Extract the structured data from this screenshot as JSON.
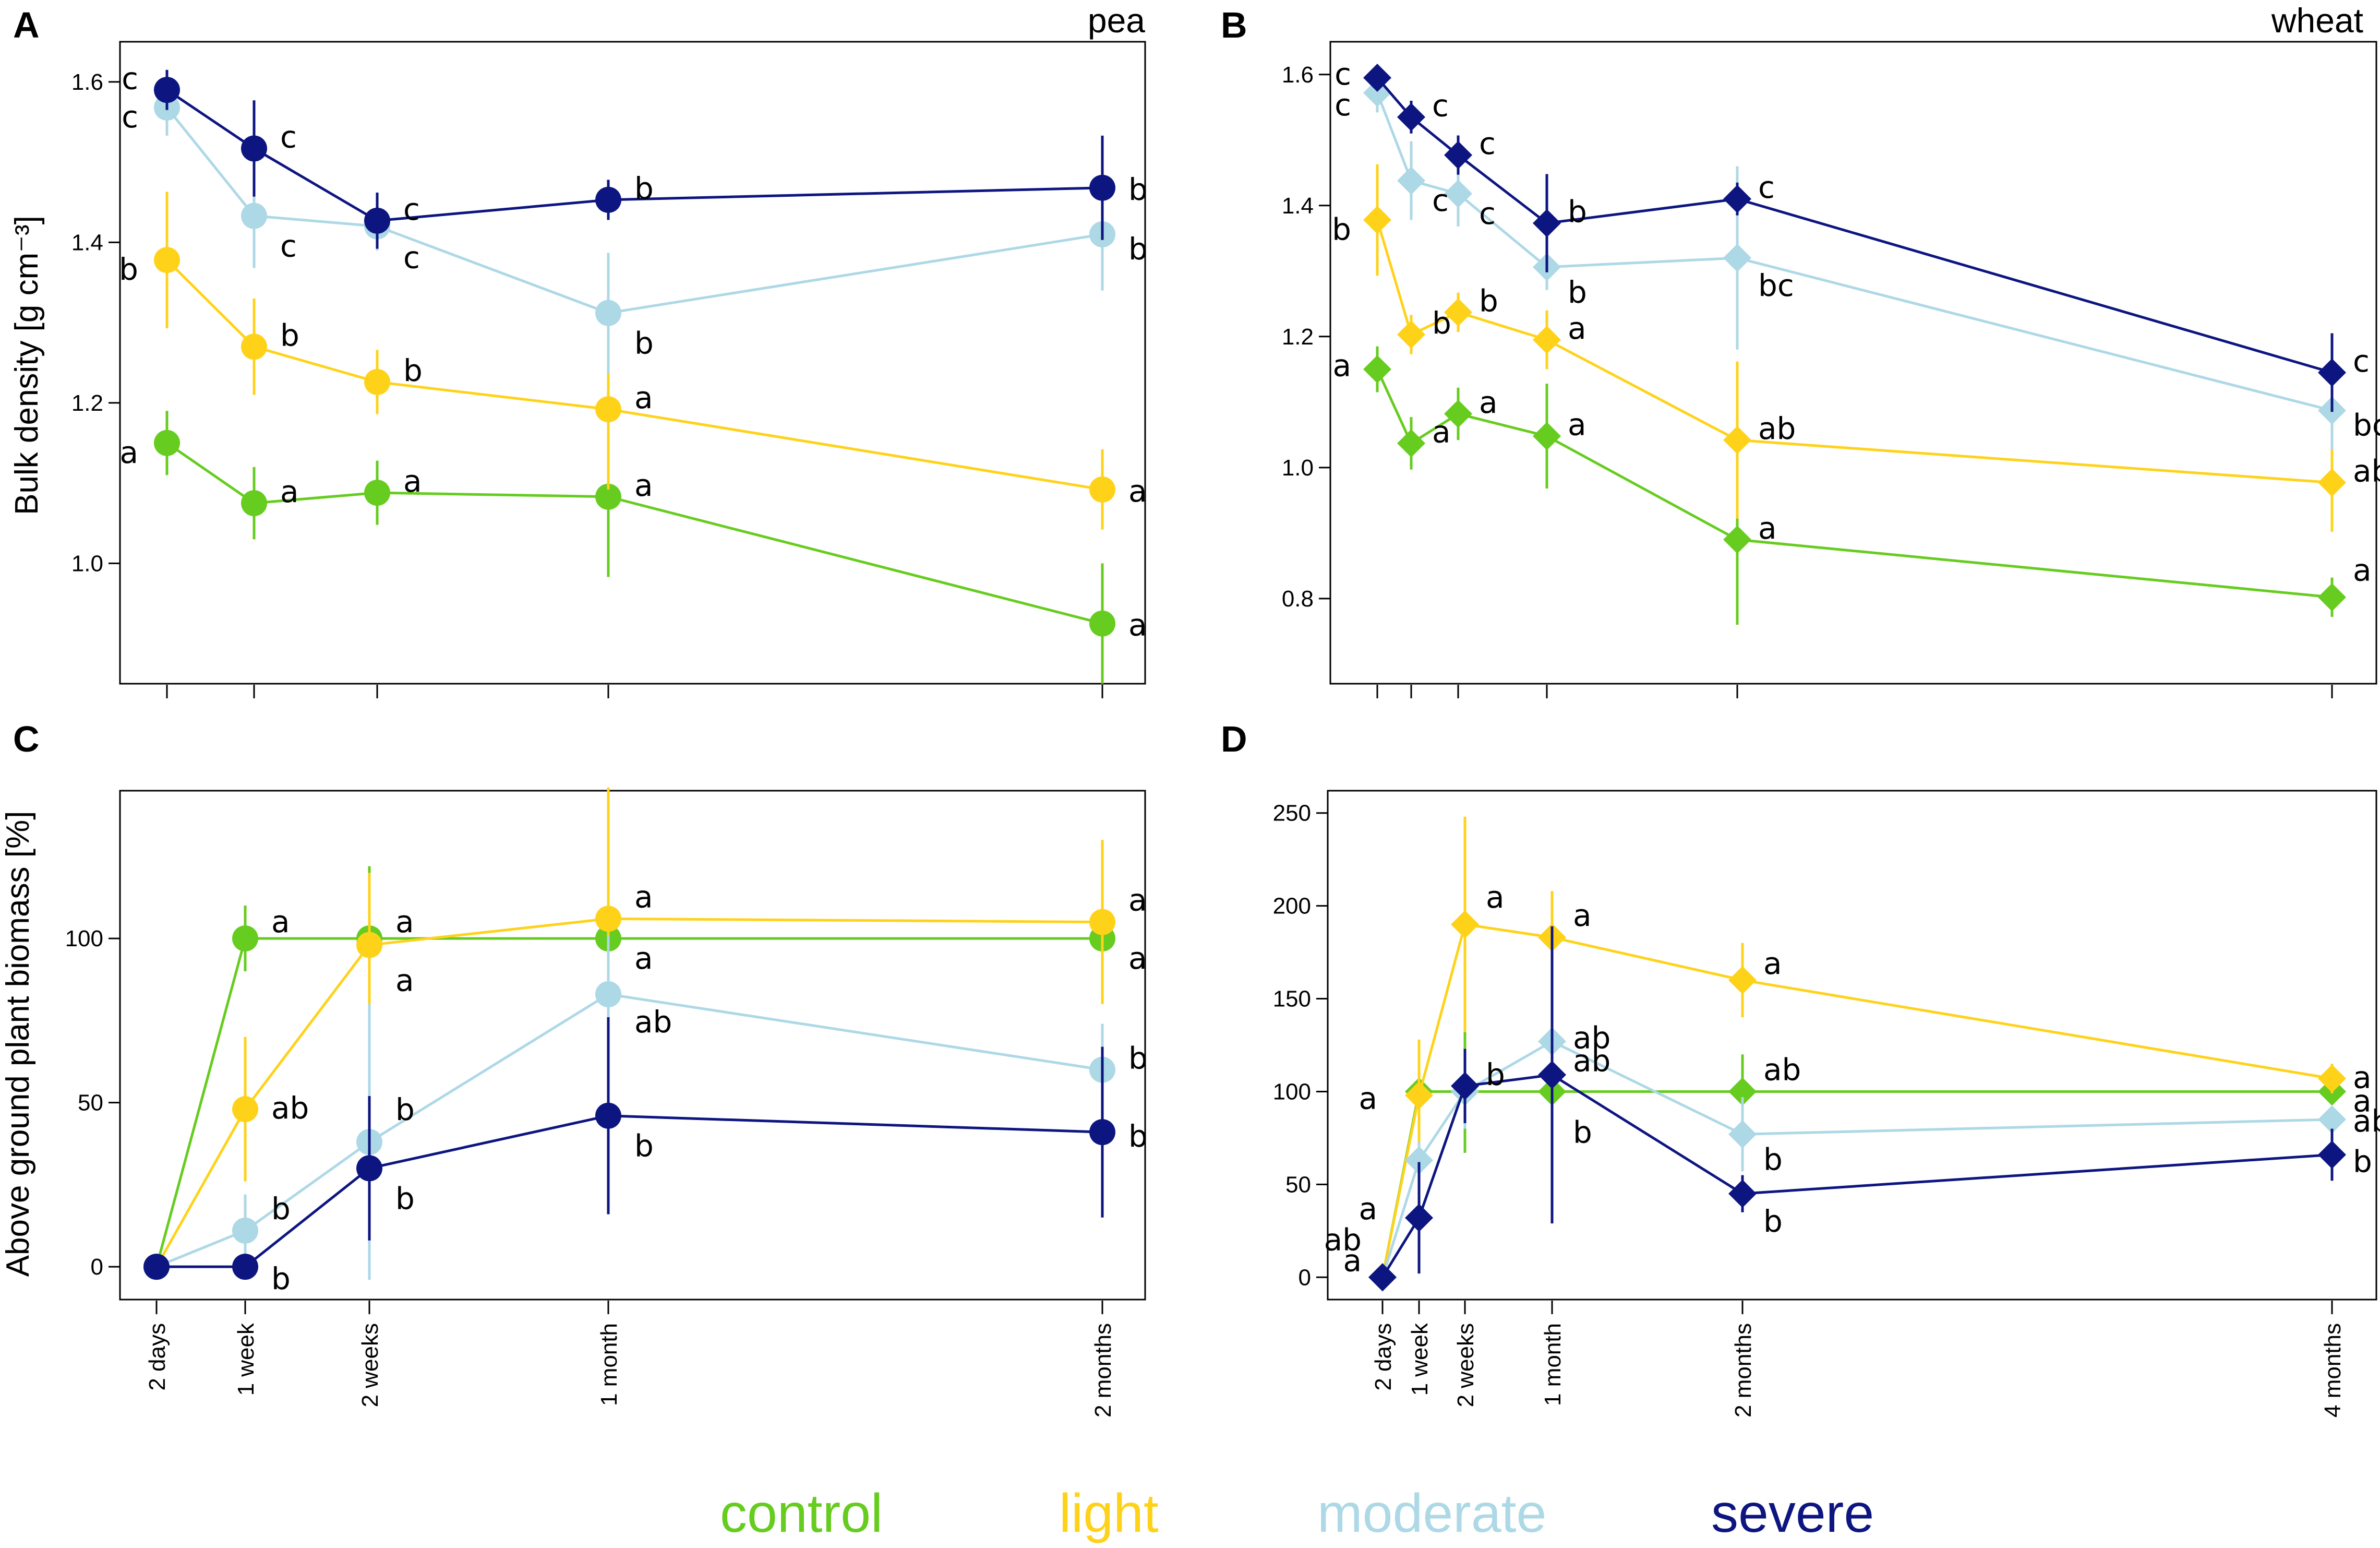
{
  "colors": {
    "control": "#66cc1f",
    "light": "#ffd21a",
    "moderate": "#add8e6",
    "severe": "#0d1580"
  },
  "legend": [
    {
      "key": "control",
      "label": "control"
    },
    {
      "key": "light",
      "label": "light"
    },
    {
      "key": "moderate",
      "label": "moderate"
    },
    {
      "key": "severe",
      "label": "severe"
    }
  ],
  "ylabel_top": "Bulk density [g cm⁻³]",
  "ylabel_bottom": "Above ground plant biomass [%]",
  "chart_data": [
    {
      "panel": "A",
      "crop": "pea",
      "type": "line",
      "marker": "circle",
      "ylabel": "Bulk density [g cm⁻³]",
      "ylim": [
        0.85,
        1.65
      ],
      "yticks": [
        1.0,
        1.2,
        1.4,
        1.6
      ],
      "x": [
        0,
        1,
        2,
        3,
        4
      ],
      "xticks": [
        "2 days",
        "1 week",
        "2 weeks",
        "1 month",
        "2 months"
      ],
      "show_xtick_labels": false,
      "series": [
        {
          "name": "control",
          "values": [
            1.15,
            1.075,
            1.088,
            1.083,
            0.925
          ],
          "err": [
            0.04,
            0.045,
            0.04,
            0.1,
            0.075
          ],
          "labels": [
            "a",
            "a",
            "a",
            "a",
            "a"
          ]
        },
        {
          "name": "light",
          "values": [
            1.378,
            1.27,
            1.226,
            1.192,
            1.092
          ],
          "err": [
            0.085,
            0.06,
            0.04,
            0.1,
            0.05
          ],
          "labels": [
            "b",
            "b",
            "b",
            "a",
            "a"
          ]
        },
        {
          "name": "moderate",
          "values": [
            1.568,
            1.433,
            1.42,
            1.312,
            1.41
          ],
          "err": [
            0.035,
            0.065,
            0.03,
            0.075,
            0.07
          ],
          "labels": [
            "c",
            "c",
            "c",
            "b",
            "b"
          ]
        },
        {
          "name": "severe",
          "values": [
            1.59,
            1.517,
            1.427,
            1.453,
            1.468
          ],
          "err": [
            0.025,
            0.06,
            0.035,
            0.025,
            0.065
          ],
          "labels": [
            "c",
            "c",
            "c",
            "b",
            "b"
          ]
        }
      ]
    },
    {
      "panel": "B",
      "crop": "wheat",
      "type": "line",
      "marker": "diamond",
      "ylabel": "",
      "ylim": [
        0.67,
        1.65
      ],
      "yticks": [
        0.8,
        1.0,
        1.2,
        1.4,
        1.6
      ],
      "x": [
        0,
        1,
        2,
        3,
        4,
        5
      ],
      "xticks": [
        "2 days",
        "1 week",
        "2 weeks",
        "1 month",
        "2 months",
        "4 months"
      ],
      "show_xtick_labels": false,
      "series": [
        {
          "name": "control",
          "values": [
            1.15,
            1.037,
            1.082,
            1.048,
            0.89,
            0.802
          ],
          "err": [
            0.035,
            0.04,
            0.04,
            0.08,
            0.13,
            0.03
          ],
          "labels": [
            "a",
            "a",
            "a",
            "a",
            "a",
            "a"
          ]
        },
        {
          "name": "light",
          "values": [
            1.378,
            1.203,
            1.237,
            1.195,
            1.042,
            0.977
          ],
          "err": [
            0.085,
            0.03,
            0.03,
            0.045,
            0.12,
            0.075
          ],
          "labels": [
            "b",
            "b",
            "b",
            "a",
            "ab",
            "ab"
          ]
        },
        {
          "name": "moderate",
          "values": [
            1.572,
            1.438,
            1.418,
            1.306,
            1.32,
            1.087
          ],
          "err": [
            0.03,
            0.06,
            0.05,
            0.035,
            0.14,
            0.06
          ],
          "labels": [
            "c",
            "c",
            "c",
            "b",
            "bc",
            "bc"
          ]
        },
        {
          "name": "severe",
          "values": [
            1.595,
            1.535,
            1.477,
            1.373,
            1.41,
            1.145
          ],
          "err": [
            0.015,
            0.025,
            0.03,
            0.075,
            0.025,
            0.06
          ],
          "labels": [
            "c",
            "c",
            "c",
            "b",
            "c",
            "c"
          ]
        }
      ]
    },
    {
      "panel": "C",
      "crop": "",
      "type": "line",
      "marker": "circle",
      "ylabel": "Above ground plant biomass [%]",
      "ylim": [
        -10,
        145
      ],
      "yticks": [
        0,
        50,
        100
      ],
      "x": [
        0,
        1,
        2,
        3,
        4
      ],
      "xticks": [
        "2 days",
        "1 week",
        "2 weeks",
        "1 month",
        "2 months"
      ],
      "show_xtick_labels": true,
      "series": [
        {
          "name": "control",
          "values": [
            0,
            100,
            100,
            100,
            100
          ],
          "err": [
            0,
            10,
            22,
            20,
            12
          ],
          "labels": [
            "",
            "a",
            "a",
            "a",
            "a"
          ]
        },
        {
          "name": "light",
          "values": [
            0,
            48,
            98,
            106,
            105
          ],
          "err": [
            0,
            22,
            22,
            40,
            25
          ],
          "labels": [
            "",
            "ab",
            "a",
            "a",
            "a"
          ]
        },
        {
          "name": "moderate",
          "values": [
            0,
            11,
            38,
            83,
            60
          ],
          "err": [
            0,
            11,
            42,
            18,
            14
          ],
          "labels": [
            "",
            "b",
            "b",
            "ab",
            "b"
          ]
        },
        {
          "name": "severe",
          "values": [
            0,
            0,
            30,
            46,
            41
          ],
          "err": [
            0,
            0,
            22,
            30,
            26
          ],
          "labels": [
            "",
            "b",
            "b",
            "b",
            "b"
          ]
        }
      ]
    },
    {
      "panel": "D",
      "crop": "",
      "type": "line",
      "marker": "diamond",
      "ylabel": "",
      "ylim": [
        -12,
        262
      ],
      "yticks": [
        0,
        50,
        100,
        150,
        200,
        250
      ],
      "x": [
        0,
        1,
        2,
        3,
        4,
        5
      ],
      "xticks": [
        "2 days",
        "1 week",
        "2 weeks",
        "1 month",
        "2 months",
        "4 months"
      ],
      "show_xtick_labels": true,
      "series": [
        {
          "name": "control",
          "values": [
            0,
            100,
            100,
            100,
            100,
            100
          ],
          "err": [
            0,
            20,
            33,
            18,
            20,
            0
          ],
          "labels": [
            "a",
            "a",
            "",
            "b",
            "ab",
            "a"
          ]
        },
        {
          "name": "light",
          "values": [
            0,
            98,
            190,
            183,
            160,
            107
          ],
          "err": [
            0,
            30,
            58,
            25,
            20,
            8
          ],
          "labels": [
            "",
            "",
            "a",
            "a",
            "a",
            "a"
          ]
        },
        {
          "name": "moderate",
          "values": [
            0,
            63,
            100,
            127,
            77,
            85
          ],
          "err": [
            0,
            10,
            20,
            20,
            20,
            5
          ],
          "labels": [
            "",
            "a",
            "",
            "ab",
            "b",
            "ab"
          ]
        },
        {
          "name": "severe",
          "values": [
            0,
            32,
            103,
            109,
            45,
            66
          ],
          "err": [
            0,
            30,
            20,
            80,
            10,
            14
          ],
          "labels": [
            "ab",
            "",
            "b",
            "ab",
            "b",
            "b"
          ]
        }
      ]
    }
  ]
}
